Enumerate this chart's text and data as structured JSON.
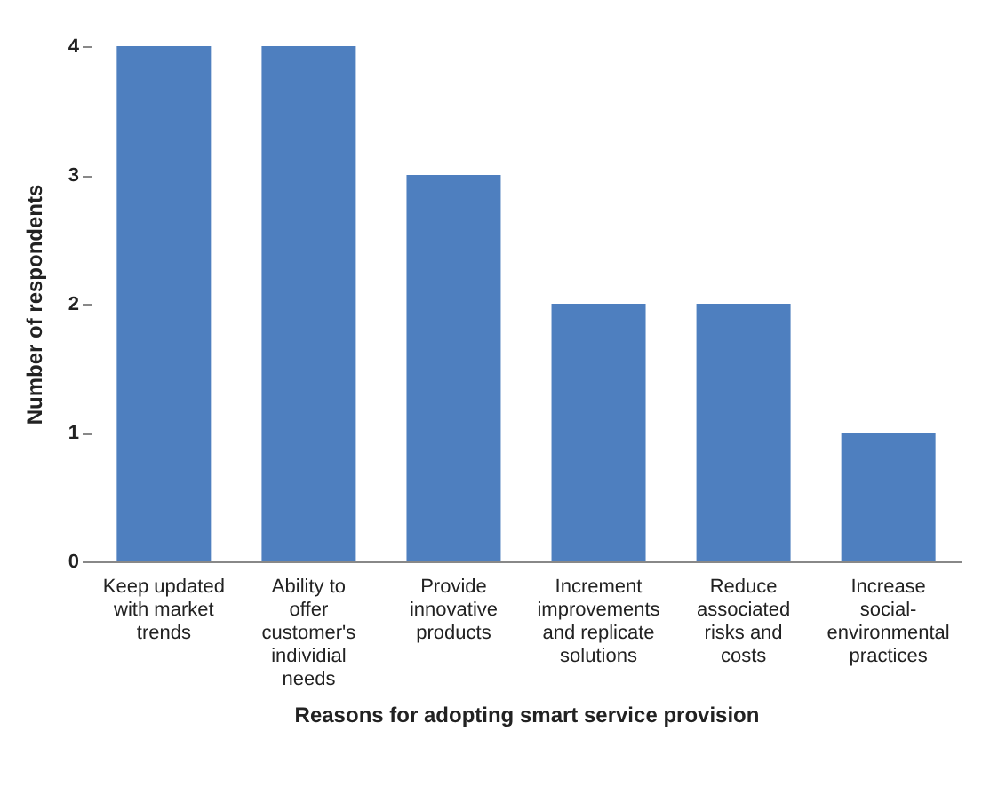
{
  "chart_data": {
    "type": "bar",
    "xlabel": "Reasons for adopting smart service provision",
    "ylabel": "Number of respondents",
    "categories": [
      "Keep updated with market trends",
      "Ability to offer customer's individial needs",
      "Provide innovative products",
      "Increment improvements and replicate solutions",
      "Reduce associated risks and costs",
      "Increase social-environmental practices"
    ],
    "values": [
      4,
      4,
      3,
      2,
      2,
      1
    ],
    "color": "#4e7fbf",
    "ylim": [
      0,
      4
    ],
    "yticks": [
      0,
      1,
      2,
      3,
      4
    ],
    "grid": false
  }
}
